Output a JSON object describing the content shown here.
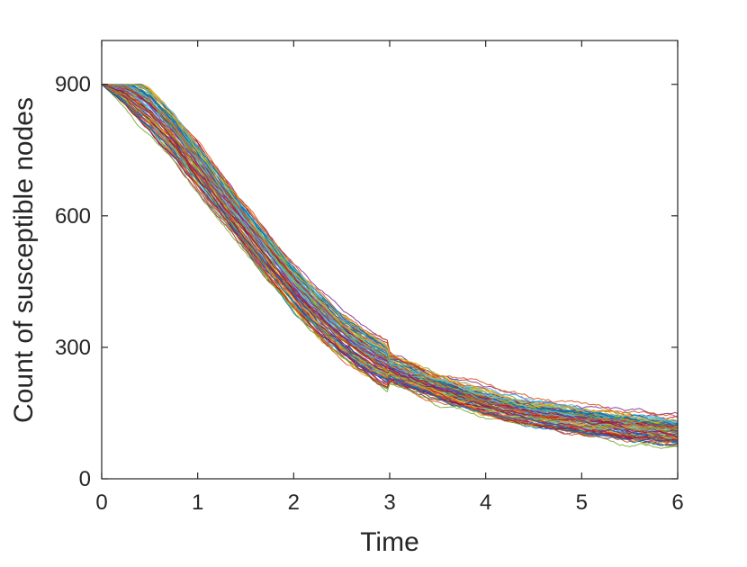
{
  "chart_data": {
    "type": "line",
    "title": "",
    "xlabel": "Time",
    "ylabel": "Count of susceptible nodes",
    "xlim": [
      0,
      6
    ],
    "ylim": [
      0,
      1000
    ],
    "xticks": [
      0,
      1,
      2,
      3,
      4,
      5,
      6
    ],
    "xtick_labels": [
      "0",
      "1",
      "2",
      "3",
      "4",
      "5",
      "6"
    ],
    "yticks": [
      0,
      300,
      600,
      900
    ],
    "ytick_labels": [
      "0",
      "300",
      "600",
      "900"
    ],
    "grid": false,
    "legend": "none",
    "series_count": 100,
    "mean_curve": {
      "x": [
        0,
        0.25,
        0.5,
        0.75,
        1,
        1.25,
        1.5,
        1.75,
        2,
        2.25,
        2.5,
        2.75,
        3,
        3.5,
        4,
        4.5,
        5,
        5.5,
        6
      ],
      "y": [
        900,
        880,
        840,
        780,
        710,
        640,
        570,
        500,
        435,
        375,
        325,
        285,
        250,
        205,
        170,
        145,
        128,
        115,
        105
      ]
    },
    "spread_range": [
      -45,
      45
    ],
    "colors": [
      "#0072BD",
      "#D95319",
      "#EDB120",
      "#7E2F8E",
      "#77AC30",
      "#4DBEEE",
      "#A2142F"
    ]
  }
}
